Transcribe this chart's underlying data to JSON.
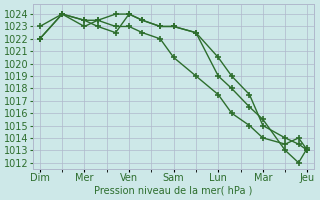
{
  "xlabel": "Pression niveau de la mer( hPa )",
  "bg_color": "#cde8e8",
  "grid_color": "#b0b8cc",
  "line_color": "#2d6e2d",
  "ylim": [
    1011.5,
    1024.8
  ],
  "yticks": [
    1012,
    1013,
    1014,
    1015,
    1016,
    1017,
    1018,
    1019,
    1020,
    1021,
    1022,
    1023,
    1024
  ],
  "xtick_labels": [
    "Dim",
    "Mer",
    "Ven",
    "Sam",
    "Lun",
    "Mar",
    "Jeu"
  ],
  "xtick_positions": [
    0,
    1,
    2,
    3,
    4,
    5,
    6
  ],
  "series": [
    {
      "x": [
        0,
        0.5,
        1.0,
        1.3,
        1.7,
        2.0,
        2.3,
        2.7,
        3.0,
        3.5,
        4.0,
        4.3,
        4.7,
        5.0,
        5.5,
        5.8,
        6.0
      ],
      "y": [
        1022,
        1024,
        1023,
        1023.5,
        1023,
        1023,
        1022.5,
        1022,
        1020.5,
        1019,
        1017.5,
        1016,
        1015,
        1014,
        1013.5,
        1014,
        1013
      ]
    },
    {
      "x": [
        0,
        0.5,
        1.0,
        1.3,
        1.7,
        2.0,
        2.3,
        2.7,
        3.0,
        3.5,
        4.0,
        4.3,
        4.7,
        5.0,
        5.5,
        5.8,
        6.0
      ],
      "y": [
        1023,
        1024,
        1023.5,
        1023,
        1022.5,
        1024,
        1023.5,
        1023,
        1023,
        1022.5,
        1019,
        1018,
        1016.5,
        1015.5,
        1013,
        1012,
        1013.2
      ]
    },
    {
      "x": [
        0,
        0.5,
        1.0,
        1.3,
        1.7,
        2.0,
        2.3,
        2.7,
        3.0,
        3.5,
        4.0,
        4.3,
        4.7,
        5.0,
        5.5,
        5.8,
        6.0
      ],
      "y": [
        1022,
        1024,
        1023.5,
        1023.5,
        1024,
        1024,
        1023.5,
        1023,
        1023,
        1022.5,
        1020.5,
        1019,
        1017.5,
        1015,
        1014,
        1013.5,
        1013
      ]
    }
  ],
  "marker": "+",
  "marker_size": 5,
  "linewidth": 1.0,
  "font_color": "#2d6e2d",
  "tick_fontsize": 7
}
